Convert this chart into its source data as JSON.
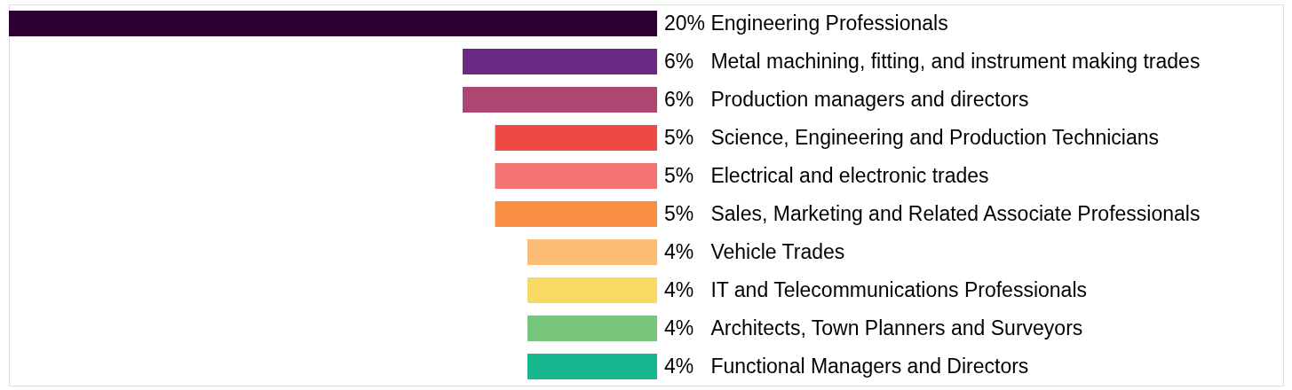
{
  "chart_data": {
    "type": "bar",
    "orientation": "horizontal",
    "categories": [
      "Engineering Professionals",
      "Metal machining, fitting, and instrument making trades",
      "Production managers and directors",
      "Science, Engineering and Production Technicians",
      "Electrical and electronic trades",
      "Sales, Marketing and Related Associate Professionals",
      "Vehicle Trades",
      "IT and Telecommunications Professionals",
      "Architects, Town Planners and Surveyors",
      "Functional Managers and Directors"
    ],
    "values": [
      20,
      6,
      6,
      5,
      5,
      5,
      4,
      4,
      4,
      4
    ],
    "value_labels": [
      "20%",
      "6%",
      "6%",
      "5%",
      "5%",
      "5%",
      "4%",
      "4%",
      "4%",
      "4%"
    ],
    "colors": [
      "#2c0031",
      "#6a2a84",
      "#ad4671",
      "#ee4a45",
      "#f37472",
      "#f88f44",
      "#fbbd74",
      "#f8d963",
      "#78c67b",
      "#17b890"
    ],
    "xlim": [
      20,
      0
    ],
    "tick_labels": false,
    "legend": false
  }
}
